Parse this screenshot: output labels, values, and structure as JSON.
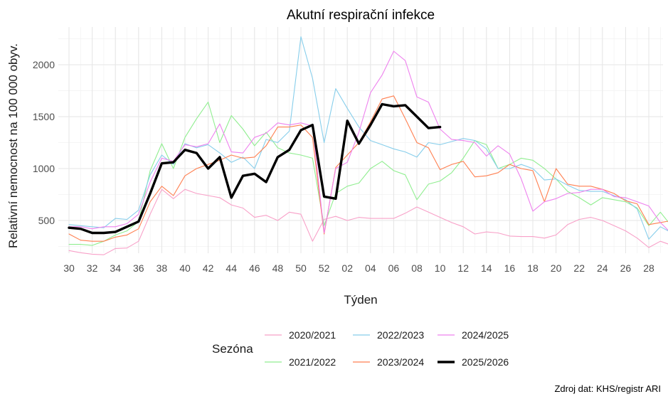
{
  "chart_data": {
    "type": "line",
    "title": "Akutní respirační infekce",
    "xlabel": "Týden",
    "ylabel": "Relativní nemocnost na 100 000 obyv.",
    "caption": "Zdroj dat: KHS/registr ARI",
    "x_ticks": [
      "30",
      "32",
      "34",
      "36",
      "38",
      "40",
      "42",
      "44",
      "46",
      "48",
      "50",
      "52",
      "02",
      "04",
      "06",
      "08",
      "10",
      "12",
      "14",
      "16",
      "18",
      "20",
      "22",
      "24",
      "26",
      "28"
    ],
    "y_ticks": [
      "500",
      "1000",
      "1500",
      "2000"
    ],
    "ylim": [
      200,
      2300
    ],
    "grid": true,
    "legend": {
      "title": "Sezóna",
      "position": "bottom"
    },
    "series": [
      {
        "name": "2020/2021",
        "color": "#F8A0C8",
        "values": [
          210,
          190,
          175,
          170,
          230,
          235,
          300,
          560,
          800,
          710,
          800,
          760,
          740,
          720,
          650,
          620,
          530,
          550,
          500,
          580,
          560,
          300,
          510,
          540,
          500,
          530,
          520,
          520,
          520,
          570,
          630,
          580,
          530,
          480,
          440,
          370,
          390,
          380,
          350,
          345,
          345,
          330,
          360,
          460,
          510,
          530,
          500,
          450,
          400,
          330,
          240,
          300,
          260
        ]
      },
      {
        "name": "2021/2022",
        "color": "#90EE90",
        "values": [
          270,
          270,
          260,
          300,
          360,
          400,
          490,
          980,
          1240,
          1000,
          1300,
          1480,
          1640,
          1250,
          1510,
          1380,
          1220,
          1350,
          1200,
          1150,
          1130,
          1100,
          450,
          760,
          830,
          860,
          1000,
          1070,
          980,
          940,
          700,
          850,
          880,
          960,
          1100,
          1270,
          1230,
          1000,
          1040,
          1100,
          1080,
          1000,
          900,
          780,
          720,
          650,
          720,
          700,
          680,
          620,
          450,
          580,
          440
        ]
      },
      {
        "name": "2022/2023",
        "color": "#87CEEB",
        "values": [
          460,
          450,
          440,
          430,
          520,
          510,
          600,
          940,
          1130,
          1040,
          1240,
          1200,
          1230,
          1150,
          1060,
          1110,
          1000,
          1280,
          1250,
          1360,
          2270,
          1870,
          1250,
          1770,
          1580,
          1400,
          1270,
          1230,
          1190,
          1160,
          1110,
          1250,
          1230,
          1260,
          1290,
          1270,
          1190,
          1000,
          1000,
          1040,
          1000,
          890,
          900,
          840,
          790,
          780,
          780,
          740,
          700,
          610,
          320,
          440,
          380
        ]
      },
      {
        "name": "2023/2024",
        "color": "#FF7F50",
        "values": [
          370,
          310,
          300,
          300,
          340,
          360,
          420,
          680,
          830,
          740,
          930,
          1000,
          1040,
          1080,
          1130,
          1100,
          1110,
          1220,
          1400,
          1400,
          1420,
          1300,
          370,
          1010,
          1130,
          1250,
          1450,
          1670,
          1700,
          1480,
          1250,
          1200,
          990,
          1040,
          1070,
          920,
          930,
          960,
          1040,
          1000,
          980,
          680,
          1000,
          850,
          830,
          830,
          800,
          760,
          690,
          660,
          460,
          480,
          500
        ]
      },
      {
        "name": "2024/2025",
        "color": "#EE82EE",
        "values": [
          440,
          440,
          420,
          440,
          440,
          470,
          560,
          870,
          1100,
          1070,
          1230,
          1210,
          1240,
          1430,
          1160,
          1150,
          1300,
          1340,
          1440,
          1420,
          1440,
          1410,
          380,
          1000,
          1060,
          1350,
          1730,
          1900,
          2130,
          2040,
          1690,
          1640,
          1380,
          1280,
          1270,
          1250,
          1120,
          1220,
          1140,
          900,
          590,
          680,
          710,
          760,
          770,
          800,
          800,
          730,
          720,
          680,
          640,
          480,
          370
        ]
      },
      {
        "name": "2025/2026",
        "color": "#000000",
        "values": [
          430,
          420,
          380,
          380,
          390,
          440,
          490,
          760,
          1050,
          1060,
          1180,
          1150,
          1000,
          1110,
          720,
          930,
          950,
          870,
          1110,
          1180,
          1370,
          1420,
          730,
          710,
          1460,
          1240,
          1420,
          1620,
          1600,
          1610,
          1500,
          1390,
          1400
        ]
      }
    ]
  }
}
